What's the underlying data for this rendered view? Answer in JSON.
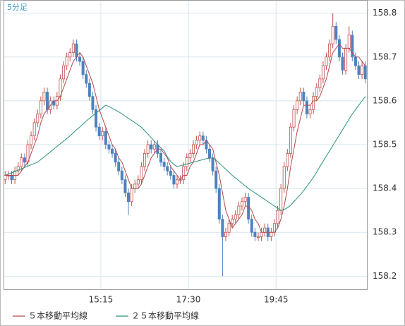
{
  "chart_data": {
    "type": "candlestick",
    "label": "5分足",
    "open": [
      158.42,
      158.43,
      158.43,
      158.42,
      158.44,
      158.45,
      158.47,
      158.46,
      158.5,
      158.52,
      158.55,
      158.57,
      158.6,
      158.62,
      158.58,
      158.6,
      158.59,
      158.61,
      158.65,
      158.68,
      158.7,
      158.71,
      158.73,
      158.7,
      158.69,
      158.66,
      158.64,
      158.61,
      158.58,
      158.54,
      158.52,
      158.53,
      158.5,
      158.49,
      158.48,
      158.46,
      158.44,
      158.42,
      158.39,
      158.37,
      158.4,
      158.41,
      158.42,
      158.45,
      158.48,
      158.5,
      158.49,
      158.5,
      158.48,
      158.46,
      158.45,
      158.44,
      158.43,
      158.41,
      158.42,
      158.42,
      158.45,
      158.47,
      158.48,
      158.5,
      158.51,
      158.52,
      158.51,
      158.49,
      158.47,
      158.44,
      158.4,
      158.33,
      158.29,
      158.3,
      158.32,
      158.33,
      158.34,
      158.36,
      158.37,
      158.38,
      158.33,
      158.3,
      158.29,
      158.29,
      158.3,
      158.31,
      158.29,
      158.3,
      158.32,
      158.35,
      158.4,
      158.45,
      158.48,
      158.54,
      158.58,
      158.6,
      158.62,
      158.6,
      158.57,
      158.58,
      158.61,
      158.63,
      158.65,
      158.68,
      158.7,
      158.73,
      158.77,
      158.74,
      158.7,
      158.67,
      158.72,
      158.75,
      158.7,
      158.68,
      158.66,
      158.68
    ],
    "high": [
      158.44,
      158.44,
      158.44,
      158.45,
      158.46,
      158.48,
      158.48,
      158.51,
      158.53,
      158.56,
      158.58,
      158.61,
      158.63,
      158.63,
      158.61,
      158.61,
      158.62,
      158.66,
      158.69,
      158.71,
      158.72,
      158.74,
      158.74,
      158.71,
      158.7,
      158.67,
      158.65,
      158.62,
      158.59,
      158.55,
      158.54,
      158.54,
      158.51,
      158.5,
      158.49,
      158.47,
      158.45,
      158.43,
      158.4,
      158.41,
      158.42,
      158.43,
      158.46,
      158.49,
      158.51,
      158.51,
      158.51,
      158.51,
      158.49,
      158.47,
      158.46,
      158.45,
      158.44,
      158.43,
      158.43,
      158.46,
      158.48,
      158.49,
      158.51,
      158.52,
      158.53,
      158.53,
      158.52,
      158.5,
      158.48,
      158.45,
      158.41,
      158.34,
      158.31,
      158.33,
      158.34,
      158.35,
      158.37,
      158.38,
      158.39,
      158.39,
      158.34,
      158.31,
      158.3,
      158.31,
      158.32,
      158.32,
      158.31,
      158.33,
      158.36,
      158.41,
      158.46,
      158.49,
      158.55,
      158.59,
      158.61,
      158.63,
      158.63,
      158.61,
      158.59,
      158.62,
      158.64,
      158.66,
      158.69,
      158.71,
      158.74,
      158.8,
      158.78,
      158.75,
      158.71,
      158.73,
      158.77,
      158.76,
      158.71,
      158.69,
      158.69,
      158.69
    ],
    "low": [
      158.41,
      158.42,
      158.41,
      158.41,
      158.43,
      158.44,
      158.45,
      158.45,
      158.49,
      158.51,
      158.54,
      158.56,
      158.59,
      158.57,
      158.57,
      158.58,
      158.58,
      158.6,
      158.64,
      158.67,
      158.69,
      158.7,
      158.69,
      158.68,
      158.65,
      158.63,
      158.6,
      158.57,
      158.53,
      158.51,
      158.51,
      158.49,
      158.48,
      158.47,
      158.45,
      158.43,
      158.41,
      158.38,
      158.34,
      158.36,
      158.39,
      158.4,
      158.41,
      158.44,
      158.47,
      158.48,
      158.48,
      158.47,
      158.45,
      158.44,
      158.43,
      158.42,
      158.4,
      158.4,
      158.41,
      158.41,
      158.44,
      158.46,
      158.47,
      158.49,
      158.5,
      158.5,
      158.48,
      158.46,
      158.43,
      158.39,
      158.32,
      158.2,
      158.28,
      158.29,
      158.31,
      158.32,
      158.33,
      158.35,
      158.36,
      158.32,
      158.29,
      158.28,
      158.28,
      158.28,
      158.29,
      158.28,
      158.28,
      158.29,
      158.31,
      158.34,
      158.39,
      158.44,
      158.47,
      158.53,
      158.57,
      158.59,
      158.59,
      158.56,
      158.56,
      158.57,
      158.6,
      158.62,
      158.64,
      158.67,
      158.69,
      158.72,
      158.73,
      158.69,
      158.66,
      158.66,
      158.71,
      158.69,
      158.67,
      158.65,
      158.65,
      158.64
    ],
    "close": [
      158.43,
      158.43,
      158.42,
      158.44,
      158.45,
      158.47,
      158.46,
      158.5,
      158.52,
      158.55,
      158.57,
      158.6,
      158.62,
      158.58,
      158.6,
      158.59,
      158.61,
      158.65,
      158.68,
      158.7,
      158.71,
      158.73,
      158.7,
      158.69,
      158.66,
      158.64,
      158.61,
      158.58,
      158.54,
      158.52,
      158.53,
      158.5,
      158.49,
      158.48,
      158.46,
      158.44,
      158.42,
      158.39,
      158.37,
      158.4,
      158.41,
      158.42,
      158.45,
      158.48,
      158.5,
      158.49,
      158.5,
      158.48,
      158.46,
      158.45,
      158.44,
      158.43,
      158.41,
      158.42,
      158.42,
      158.45,
      158.47,
      158.48,
      158.5,
      158.51,
      158.52,
      158.51,
      158.49,
      158.47,
      158.44,
      158.4,
      158.33,
      158.29,
      158.3,
      158.32,
      158.33,
      158.34,
      158.36,
      158.37,
      158.38,
      158.33,
      158.3,
      158.29,
      158.29,
      158.3,
      158.31,
      158.29,
      158.3,
      158.32,
      158.35,
      158.4,
      158.45,
      158.48,
      158.54,
      158.58,
      158.6,
      158.62,
      158.6,
      158.57,
      158.58,
      158.61,
      158.63,
      158.65,
      158.68,
      158.7,
      158.73,
      158.77,
      158.74,
      158.7,
      158.67,
      158.72,
      158.75,
      158.7,
      158.68,
      158.66,
      158.68,
      158.65
    ],
    "up_color": "#c0504d",
    "down_color": "#4f81bd",
    "series": [
      {
        "name": "５本移動平均線",
        "color": "#b24a4a",
        "values": [
          158.43,
          158.43,
          158.43,
          158.43,
          158.43,
          158.44,
          158.45,
          158.46,
          158.48,
          158.5,
          158.52,
          158.55,
          158.57,
          158.58,
          158.59,
          158.6,
          158.6,
          158.61,
          158.63,
          158.65,
          158.67,
          158.69,
          158.7,
          158.71,
          158.7,
          158.68,
          158.66,
          158.64,
          158.61,
          158.58,
          158.56,
          158.54,
          158.52,
          158.5,
          158.49,
          158.47,
          158.46,
          158.44,
          158.42,
          158.4,
          158.4,
          158.4,
          158.41,
          158.43,
          158.45,
          158.47,
          158.48,
          158.49,
          158.49,
          158.48,
          158.47,
          158.45,
          158.44,
          158.43,
          158.42,
          158.43,
          158.43,
          158.45,
          158.46,
          158.48,
          158.5,
          158.5,
          158.51,
          158.5,
          158.49,
          158.46,
          158.43,
          158.39,
          158.35,
          158.33,
          158.31,
          158.32,
          158.33,
          158.34,
          158.36,
          158.36,
          158.35,
          158.33,
          158.32,
          158.3,
          158.3,
          158.3,
          158.3,
          158.3,
          158.31,
          158.33,
          158.36,
          158.4,
          158.45,
          158.49,
          158.53,
          158.56,
          158.59,
          158.59,
          158.59,
          158.6,
          158.6,
          158.61,
          158.63,
          158.65,
          158.68,
          158.71,
          158.72,
          158.73,
          158.72,
          158.72,
          158.72,
          158.71,
          158.7,
          158.7,
          158.69,
          158.68
        ]
      },
      {
        "name": "２５本移動平均線",
        "color": "#2a9178",
        "values": [
          158.43,
          158.433,
          158.436,
          158.439,
          158.442,
          158.445,
          158.448,
          158.451,
          158.454,
          158.457,
          158.46,
          158.466,
          158.472,
          158.478,
          158.484,
          158.49,
          158.496,
          158.502,
          158.508,
          158.514,
          158.52,
          158.527,
          158.534,
          158.54,
          158.547,
          158.554,
          158.56,
          158.566,
          158.572,
          158.578,
          158.584,
          158.59,
          158.587,
          158.583,
          158.579,
          158.575,
          158.57,
          158.565,
          158.56,
          158.555,
          158.55,
          158.545,
          158.54,
          158.532,
          158.524,
          158.516,
          158.508,
          158.5,
          158.493,
          158.486,
          158.472,
          158.462,
          158.455,
          158.45,
          158.452,
          158.454,
          158.456,
          158.458,
          158.46,
          158.462,
          158.464,
          158.466,
          158.468,
          158.469,
          158.47,
          158.465,
          158.458,
          158.451,
          158.444,
          158.437,
          158.43,
          158.424,
          158.418,
          158.412,
          158.406,
          158.4,
          158.395,
          158.39,
          158.385,
          158.38,
          158.375,
          158.37,
          158.365,
          158.36,
          158.355,
          158.35,
          158.352,
          158.356,
          158.362,
          158.37,
          158.378,
          158.386,
          158.395,
          158.405,
          158.415,
          158.425,
          158.437,
          158.45,
          158.462,
          158.474,
          158.486,
          158.498,
          158.51,
          158.522,
          158.534,
          158.546,
          158.558,
          158.57,
          158.58,
          158.59,
          158.6,
          158.61
        ]
      }
    ],
    "xlim": [
      0,
      112
    ],
    "xticks": [
      {
        "value": 30,
        "label": "15:15"
      },
      {
        "value": 57,
        "label": "17:30"
      },
      {
        "value": 84,
        "label": "19:45"
      }
    ],
    "ylim": [
      158.17,
      158.83
    ],
    "yticks": [
      158.2,
      158.3,
      158.4,
      158.5,
      158.6,
      158.7,
      158.8
    ],
    "grid": true,
    "legend": "bottom-left"
  }
}
